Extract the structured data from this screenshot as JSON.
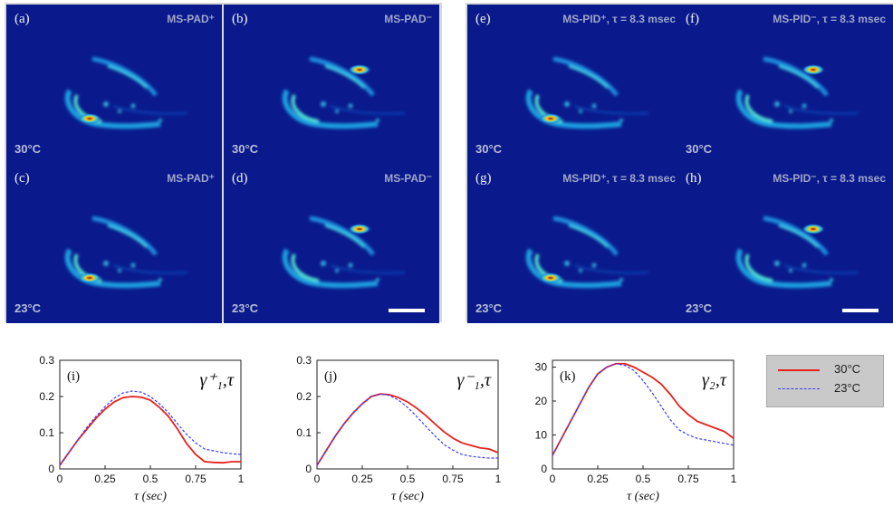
{
  "panels": [
    {
      "label": "(a)",
      "title": "MS-PAD⁺",
      "temp": "30°C",
      "scalebar": false
    },
    {
      "label": "(b)",
      "title": "MS-PAD⁻",
      "temp": "30°C",
      "scalebar": false
    },
    {
      "label": "(c)",
      "title": "MS-PAD⁺",
      "temp": "23°C",
      "scalebar": false
    },
    {
      "label": "(d)",
      "title": "MS-PAD⁻",
      "temp": "23°C",
      "scalebar": true
    },
    {
      "label": "(e)",
      "title": "MS-PID⁺, τ = 8.3 msec",
      "temp": "30°C",
      "scalebar": false
    },
    {
      "label": "(f)",
      "title": "MS-PID⁻, τ = 8.3 msec",
      "temp": "30°C",
      "scalebar": false
    },
    {
      "label": "(g)",
      "title": "MS-PID⁺, τ = 8.3 msec",
      "temp": "23°C",
      "scalebar": false
    },
    {
      "label": "(h)",
      "title": "MS-PID⁻, τ = 8.3 msec",
      "temp": "23°C",
      "scalebar": true
    }
  ],
  "legend": {
    "entries": [
      {
        "label": "30°C",
        "color": "#e8201a"
      },
      {
        "label": "23°C",
        "color": "#3a3aff"
      }
    ]
  },
  "chart_data": [
    {
      "type": "line",
      "panel_label": "(i)",
      "symbol": "γ⁺₁,τ",
      "xlabel": "τ (sec)",
      "xlim": [
        0,
        1
      ],
      "ylim": [
        0,
        0.3
      ],
      "xticks": [
        "0",
        "0.25",
        "0.5",
        "0.75",
        "1"
      ],
      "yticks": [
        "0",
        "0.1",
        "0.2",
        "0.3"
      ],
      "x": [
        0,
        0.05,
        0.1,
        0.15,
        0.2,
        0.25,
        0.3,
        0.35,
        0.4,
        0.45,
        0.5,
        0.55,
        0.6,
        0.65,
        0.7,
        0.75,
        0.8,
        0.85,
        0.9,
        0.95,
        1.0
      ],
      "series": [
        {
          "name": "30°C",
          "color": "#e8201a",
          "style": "solid",
          "values": [
            0.01,
            0.045,
            0.08,
            0.11,
            0.14,
            0.165,
            0.185,
            0.197,
            0.2,
            0.198,
            0.19,
            0.17,
            0.145,
            0.11,
            0.07,
            0.04,
            0.02,
            0.018,
            0.017,
            0.02,
            0.02
          ]
        },
        {
          "name": "23°C",
          "color": "#3a3aff",
          "style": "dashed",
          "values": [
            0.01,
            0.045,
            0.08,
            0.115,
            0.145,
            0.172,
            0.195,
            0.21,
            0.215,
            0.212,
            0.2,
            0.18,
            0.155,
            0.125,
            0.095,
            0.072,
            0.055,
            0.05,
            0.045,
            0.042,
            0.04
          ]
        }
      ]
    },
    {
      "type": "line",
      "panel_label": "(j)",
      "symbol": "γ⁻₁,τ",
      "xlabel": "τ (sec)",
      "xlim": [
        0,
        1
      ],
      "ylim": [
        0,
        0.3
      ],
      "xticks": [
        "0",
        "0.25",
        "0.5",
        "0.75",
        "1"
      ],
      "yticks": [
        "0",
        "0.1",
        "0.2",
        "0.3"
      ],
      "x": [
        0,
        0.05,
        0.1,
        0.15,
        0.2,
        0.25,
        0.3,
        0.35,
        0.4,
        0.45,
        0.5,
        0.55,
        0.6,
        0.65,
        0.7,
        0.75,
        0.8,
        0.85,
        0.9,
        0.95,
        1.0
      ],
      "series": [
        {
          "name": "30°C",
          "color": "#e8201a",
          "style": "solid",
          "values": [
            0.01,
            0.05,
            0.09,
            0.125,
            0.155,
            0.18,
            0.2,
            0.207,
            0.205,
            0.197,
            0.185,
            0.168,
            0.148,
            0.125,
            0.103,
            0.085,
            0.072,
            0.065,
            0.058,
            0.055,
            0.045
          ]
        },
        {
          "name": "23°C",
          "color": "#3a3aff",
          "style": "dashed",
          "values": [
            0.01,
            0.05,
            0.09,
            0.125,
            0.155,
            0.18,
            0.2,
            0.207,
            0.203,
            0.19,
            0.17,
            0.145,
            0.118,
            0.092,
            0.068,
            0.052,
            0.04,
            0.035,
            0.032,
            0.03,
            0.03
          ]
        }
      ]
    },
    {
      "type": "line",
      "panel_label": "(k)",
      "symbol": "γ₂,τ",
      "xlabel": "τ (sec)",
      "xlim": [
        0,
        1
      ],
      "ylim": [
        0,
        32
      ],
      "xticks": [
        "0",
        "0.25",
        "0.5",
        "0.75",
        "1"
      ],
      "yticks": [
        "0",
        "10",
        "20",
        "30"
      ],
      "x": [
        0,
        0.05,
        0.1,
        0.15,
        0.2,
        0.25,
        0.3,
        0.35,
        0.4,
        0.45,
        0.5,
        0.55,
        0.6,
        0.65,
        0.7,
        0.75,
        0.8,
        0.85,
        0.9,
        0.95,
        1.0
      ],
      "series": [
        {
          "name": "30°C",
          "color": "#e8201a",
          "style": "solid",
          "values": [
            4,
            9,
            14,
            19,
            24,
            28,
            30,
            31,
            31,
            30,
            28.5,
            27,
            25,
            22,
            18.5,
            16,
            14,
            13,
            12,
            11,
            9
          ]
        },
        {
          "name": "23°C",
          "color": "#3a3aff",
          "style": "dashed",
          "values": [
            4,
            9,
            14,
            19,
            24,
            28,
            30,
            31,
            30.5,
            29,
            26,
            22.5,
            18.5,
            14.5,
            11.5,
            10,
            9,
            8.5,
            8,
            7.5,
            7
          ]
        }
      ]
    }
  ]
}
